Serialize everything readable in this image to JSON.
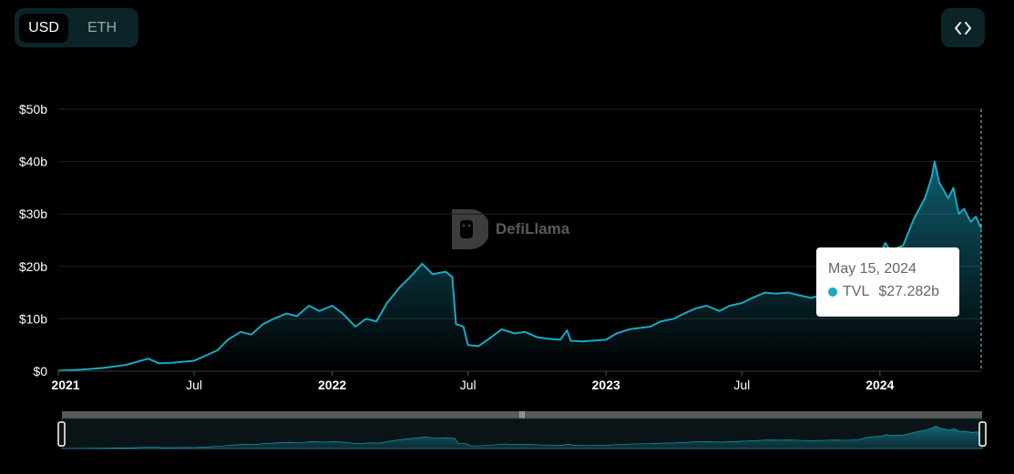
{
  "toggle": {
    "usd_label": "USD",
    "eth_label": "ETH",
    "selected": "USD"
  },
  "embed": {
    "icon": "code-icon"
  },
  "watermark": {
    "text": "DefiLlama"
  },
  "tooltip": {
    "date": "May 15, 2024",
    "series_name": "TVL",
    "value": "$27.282b"
  },
  "colors": {
    "line": "#1aa8c4",
    "background": "#000000",
    "panel": "#0c2428"
  },
  "chart_data": {
    "type": "area",
    "title": "",
    "xlabel": "",
    "ylabel": "",
    "ylim": [
      0,
      50
    ],
    "unit": "b",
    "y_ticks": [
      "$0",
      "$10b",
      "$20b",
      "$30b",
      "$40b",
      "$50b"
    ],
    "x_tick_labels": [
      {
        "date": "2021-01-01",
        "label": "2021",
        "bold": true
      },
      {
        "date": "2021-07-01",
        "label": "Jul",
        "bold": false
      },
      {
        "date": "2022-01-01",
        "label": "2022",
        "bold": true
      },
      {
        "date": "2022-07-01",
        "label": "Jul",
        "bold": false
      },
      {
        "date": "2023-01-01",
        "label": "2023",
        "bold": true
      },
      {
        "date": "2023-07-01",
        "label": "Jul",
        "bold": false
      },
      {
        "date": "2024-01-01",
        "label": "2024",
        "bold": true
      }
    ],
    "xlim": [
      "2021-01-01",
      "2024-05-15"
    ],
    "grid": true,
    "series": [
      {
        "name": "TVL",
        "points": [
          [
            "2021-01-01",
            0.1
          ],
          [
            "2021-02-01",
            0.3
          ],
          [
            "2021-03-01",
            0.6
          ],
          [
            "2021-04-01",
            1.2
          ],
          [
            "2021-05-01",
            2.4
          ],
          [
            "2021-05-15",
            1.5
          ],
          [
            "2021-06-01",
            1.6
          ],
          [
            "2021-07-01",
            2.0
          ],
          [
            "2021-08-01",
            4.0
          ],
          [
            "2021-08-15",
            6.0
          ],
          [
            "2021-09-01",
            7.5
          ],
          [
            "2021-09-15",
            7.0
          ],
          [
            "2021-10-01",
            9.0
          ],
          [
            "2021-10-15",
            10.0
          ],
          [
            "2021-11-01",
            11.0
          ],
          [
            "2021-11-15",
            10.5
          ],
          [
            "2021-12-01",
            12.5
          ],
          [
            "2021-12-15",
            11.5
          ],
          [
            "2022-01-01",
            12.5
          ],
          [
            "2022-01-15",
            11.0
          ],
          [
            "2022-02-01",
            8.5
          ],
          [
            "2022-02-15",
            10.0
          ],
          [
            "2022-03-01",
            9.5
          ],
          [
            "2022-03-15",
            13.0
          ],
          [
            "2022-04-01",
            16.0
          ],
          [
            "2022-04-15",
            18.0
          ],
          [
            "2022-05-01",
            20.5
          ],
          [
            "2022-05-15",
            18.5
          ],
          [
            "2022-06-01",
            19.0
          ],
          [
            "2022-06-10",
            18.0
          ],
          [
            "2022-06-15",
            9.0
          ],
          [
            "2022-06-25",
            8.5
          ],
          [
            "2022-07-01",
            5.0
          ],
          [
            "2022-07-15",
            4.8
          ],
          [
            "2022-08-01",
            6.5
          ],
          [
            "2022-08-15",
            8.0
          ],
          [
            "2022-09-01",
            7.2
          ],
          [
            "2022-09-15",
            7.5
          ],
          [
            "2022-10-01",
            6.5
          ],
          [
            "2022-10-15",
            6.2
          ],
          [
            "2022-11-01",
            6.0
          ],
          [
            "2022-11-10",
            7.8
          ],
          [
            "2022-11-15",
            5.8
          ],
          [
            "2022-12-01",
            5.7
          ],
          [
            "2023-01-01",
            6.0
          ],
          [
            "2023-01-15",
            7.2
          ],
          [
            "2023-02-01",
            8.0
          ],
          [
            "2023-03-01",
            8.5
          ],
          [
            "2023-03-15",
            9.5
          ],
          [
            "2023-04-01",
            10.0
          ],
          [
            "2023-04-15",
            11.0
          ],
          [
            "2023-05-01",
            12.0
          ],
          [
            "2023-05-15",
            12.5
          ],
          [
            "2023-06-01",
            11.5
          ],
          [
            "2023-06-15",
            12.5
          ],
          [
            "2023-07-01",
            13.0
          ],
          [
            "2023-07-15",
            14.0
          ],
          [
            "2023-08-01",
            15.0
          ],
          [
            "2023-08-15",
            14.8
          ],
          [
            "2023-09-01",
            15.0
          ],
          [
            "2023-09-15",
            14.5
          ],
          [
            "2023-10-01",
            14.0
          ],
          [
            "2023-10-15",
            14.5
          ],
          [
            "2023-11-01",
            15.0
          ],
          [
            "2023-11-15",
            14.5
          ],
          [
            "2023-12-01",
            15.5
          ],
          [
            "2023-12-15",
            20.0
          ],
          [
            "2024-01-01",
            22.0
          ],
          [
            "2024-01-08",
            24.5
          ],
          [
            "2024-01-15",
            23.0
          ],
          [
            "2024-02-01",
            24.0
          ],
          [
            "2024-02-15",
            29.0
          ],
          [
            "2024-03-01",
            33.0
          ],
          [
            "2024-03-10",
            37.0
          ],
          [
            "2024-03-14",
            40.0
          ],
          [
            "2024-03-20",
            36.0
          ],
          [
            "2024-04-01",
            33.0
          ],
          [
            "2024-04-08",
            35.0
          ],
          [
            "2024-04-15",
            30.0
          ],
          [
            "2024-04-22",
            31.0
          ],
          [
            "2024-05-01",
            28.5
          ],
          [
            "2024-05-08",
            29.5
          ],
          [
            "2024-05-15",
            27.282
          ]
        ]
      }
    ]
  }
}
